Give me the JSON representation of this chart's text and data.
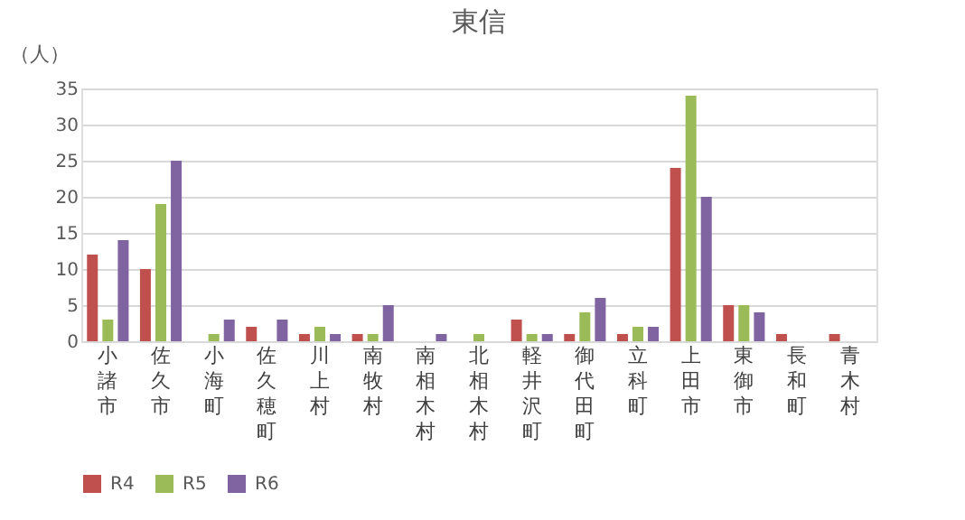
{
  "chart_data": {
    "type": "bar",
    "title": "東信",
    "ylabel": "（人）",
    "categories": [
      "小諸市",
      "佐久市",
      "小海町",
      "佐久穂町",
      "川上村",
      "南牧村",
      "南相木村",
      "北相木村",
      "軽井沢町",
      "御代田町",
      "立科町",
      "上田市",
      "東御市",
      "長和町",
      "青木村"
    ],
    "series": [
      {
        "name": "R4",
        "color": "#c0504d",
        "values": [
          12,
          10,
          0,
          2,
          1,
          1,
          0,
          0,
          3,
          1,
          1,
          24,
          5,
          1,
          1
        ]
      },
      {
        "name": "R5",
        "color": "#9bbb59",
        "values": [
          3,
          19,
          1,
          0,
          2,
          1,
          0,
          1,
          1,
          4,
          2,
          34,
          5,
          0,
          0
        ]
      },
      {
        "name": "R6",
        "color": "#8064a2",
        "values": [
          14,
          25,
          3,
          3,
          1,
          5,
          1,
          0,
          1,
          6,
          2,
          20,
          4,
          0,
          0
        ]
      }
    ],
    "ylim": [
      0,
      35
    ],
    "yticks": [
      0,
      5,
      10,
      15,
      20,
      25,
      30,
      35
    ],
    "grid": "y",
    "legend": "bottom"
  }
}
